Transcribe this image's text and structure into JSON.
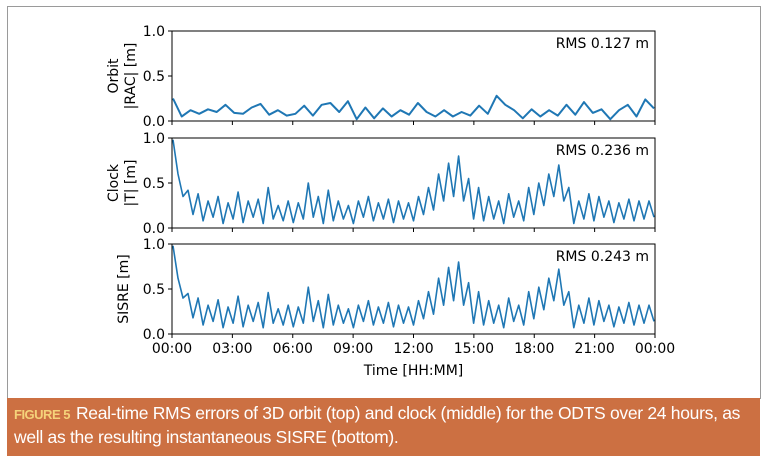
{
  "chart_data": {
    "type": "line",
    "x_label": "Time [HH:MM]",
    "x_ticks": [
      "00:00",
      "03:00",
      "06:00",
      "09:00",
      "12:00",
      "15:00",
      "18:00",
      "21:00",
      "00:00"
    ],
    "x_range_hours": [
      0,
      24
    ],
    "line_color": "#1f77b4",
    "panels": [
      {
        "ylabel_lines": [
          "Orbit",
          "|RAC| [m]"
        ],
        "annotation": "RMS 0.127 m",
        "ylim": [
          0,
          1.0
        ],
        "y_ticks": [
          "0.0",
          "0.5",
          "1.0"
        ],
        "values": [
          0.25,
          0.05,
          0.12,
          0.08,
          0.13,
          0.1,
          0.18,
          0.09,
          0.08,
          0.15,
          0.19,
          0.07,
          0.12,
          0.06,
          0.08,
          0.17,
          0.06,
          0.18,
          0.2,
          0.1,
          0.22,
          0.02,
          0.15,
          0.03,
          0.14,
          0.05,
          0.12,
          0.07,
          0.2,
          0.1,
          0.05,
          0.12,
          0.05,
          0.1,
          0.06,
          0.17,
          0.08,
          0.28,
          0.18,
          0.12,
          0.03,
          0.13,
          0.05,
          0.12,
          0.06,
          0.18,
          0.07,
          0.21,
          0.09,
          0.13,
          0.02,
          0.12,
          0.18,
          0.05,
          0.24,
          0.14
        ]
      },
      {
        "ylabel_lines": [
          "Clock",
          "|T| [m]"
        ],
        "annotation": "RMS 0.236 m",
        "ylim": [
          0,
          1.0
        ],
        "y_ticks": [
          "0.0",
          "0.5",
          "1.0"
        ],
        "values": [
          0.98,
          0.6,
          0.35,
          0.42,
          0.15,
          0.38,
          0.08,
          0.3,
          0.12,
          0.35,
          0.05,
          0.28,
          0.1,
          0.4,
          0.06,
          0.3,
          0.12,
          0.32,
          0.05,
          0.45,
          0.1,
          0.25,
          0.08,
          0.3,
          0.06,
          0.28,
          0.1,
          0.5,
          0.12,
          0.35,
          0.05,
          0.42,
          0.08,
          0.3,
          0.1,
          0.25,
          0.05,
          0.3,
          0.12,
          0.35,
          0.08,
          0.28,
          0.1,
          0.32,
          0.06,
          0.3,
          0.1,
          0.28,
          0.08,
          0.35,
          0.15,
          0.45,
          0.2,
          0.6,
          0.3,
          0.72,
          0.35,
          0.8,
          0.3,
          0.55,
          0.1,
          0.45,
          0.08,
          0.35,
          0.1,
          0.3,
          0.05,
          0.38,
          0.12,
          0.3,
          0.08,
          0.45,
          0.15,
          0.5,
          0.25,
          0.6,
          0.35,
          0.7,
          0.3,
          0.45,
          0.05,
          0.3,
          0.1,
          0.38,
          0.08,
          0.35,
          0.12,
          0.3,
          0.06,
          0.28,
          0.1,
          0.32,
          0.08,
          0.3,
          0.1,
          0.3,
          0.12
        ]
      },
      {
        "ylabel_lines": [
          "SISRE [m]"
        ],
        "annotation": "RMS 0.243 m",
        "ylim": [
          0,
          1.0
        ],
        "y_ticks": [
          "0.0",
          "0.5",
          "1.0"
        ],
        "values": [
          0.98,
          0.62,
          0.4,
          0.45,
          0.18,
          0.4,
          0.1,
          0.32,
          0.14,
          0.38,
          0.07,
          0.3,
          0.12,
          0.42,
          0.08,
          0.32,
          0.14,
          0.35,
          0.07,
          0.46,
          0.12,
          0.28,
          0.1,
          0.32,
          0.08,
          0.3,
          0.12,
          0.52,
          0.14,
          0.37,
          0.07,
          0.44,
          0.1,
          0.32,
          0.12,
          0.28,
          0.07,
          0.32,
          0.14,
          0.37,
          0.1,
          0.3,
          0.12,
          0.35,
          0.08,
          0.32,
          0.12,
          0.3,
          0.1,
          0.37,
          0.17,
          0.47,
          0.22,
          0.62,
          0.32,
          0.74,
          0.37,
          0.8,
          0.32,
          0.57,
          0.12,
          0.47,
          0.1,
          0.37,
          0.12,
          0.32,
          0.07,
          0.4,
          0.14,
          0.32,
          0.1,
          0.47,
          0.17,
          0.52,
          0.27,
          0.62,
          0.37,
          0.72,
          0.32,
          0.47,
          0.07,
          0.32,
          0.12,
          0.4,
          0.1,
          0.37,
          0.14,
          0.32,
          0.08,
          0.3,
          0.12,
          0.35,
          0.1,
          0.32,
          0.12,
          0.32,
          0.14
        ]
      }
    ]
  },
  "caption": {
    "label": "FIGURE 5",
    "text": "Real-time RMS errors of 3D orbit (top) and clock (middle) for the ODTS over 24 hours, as well as the resulting instantaneous SISRE (bottom)."
  }
}
